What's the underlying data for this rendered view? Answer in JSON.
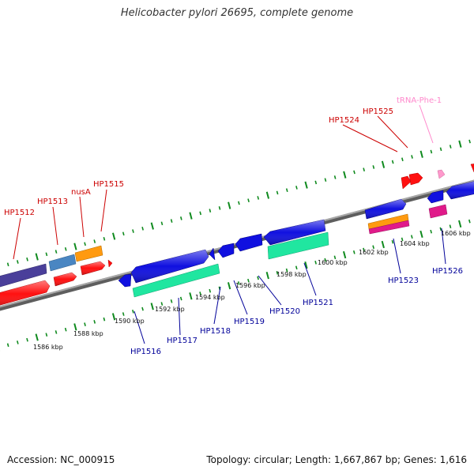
{
  "title": "Helicobacter pylori 26695, complete genome",
  "accession": "Accession: NC_000915",
  "summary": "Topology: circular; Length: 1,667,867 bp; Genes: 1,616",
  "colors": {
    "backbone": "#808080",
    "ticks": "#0f8a1e",
    "forward_label": "#cc0000",
    "reverse_label": "#000099",
    "trna_label": "#ff88cc",
    "cds_forward": "#ff1010",
    "cds_reverse": "#1010e0",
    "cog_dark": "#4a3f9a",
    "cog_blue": "#4a86c2",
    "cog_orange": "#ff9a10",
    "cog_cyan": "#20e6a0",
    "cog_magenta": "#e01a8a",
    "trna": "#ff99cc"
  },
  "scale_labels": [
    "1586 kbp",
    "1588 kbp",
    "1590 kbp",
    "1592 kbp",
    "1594 kbp",
    "1596 kbp",
    "1598 kbp",
    "1600 kbp",
    "1602 kbp",
    "1604 kbp",
    "1606 kbp"
  ],
  "gene_labels": {
    "HP1512": "HP1512",
    "HP1513": "HP1513",
    "nusA": "nusA",
    "HP1515": "HP1515",
    "HP1524": "HP1524",
    "HP1525": "HP1525",
    "tRNA-Phe-1": "tRNA-Phe-1",
    "HP1516": "HP1516",
    "HP1517": "HP1517",
    "HP1518": "HP1518",
    "HP1519": "HP1519",
    "HP1520": "HP1520",
    "HP1521": "HP1521",
    "HP1523": "HP1523",
    "HP1526": "HP1526"
  }
}
